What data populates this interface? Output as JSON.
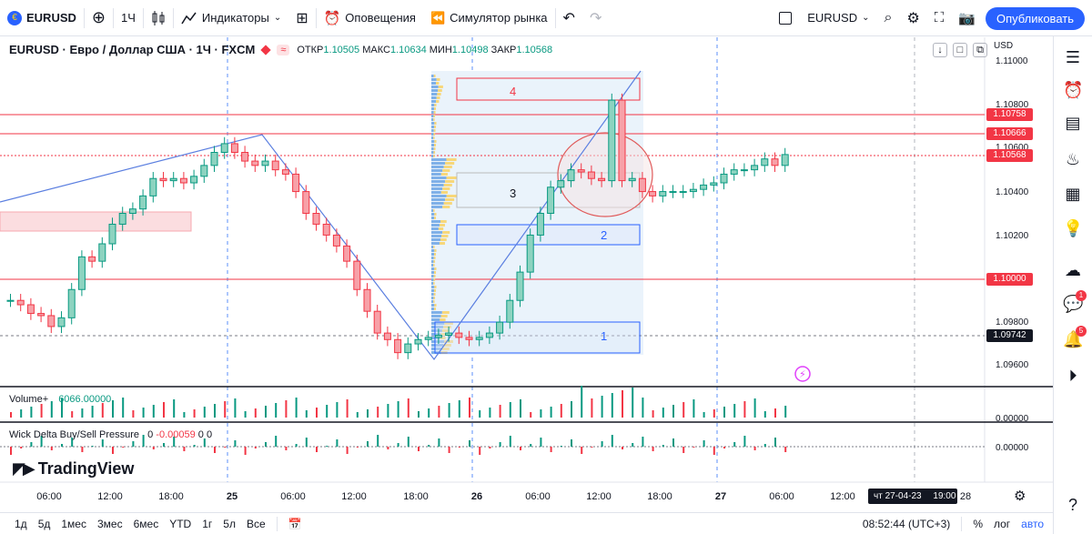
{
  "toolbar": {
    "symbol": "EURUSD",
    "interval": "1Ч",
    "indicators": "Индикаторы",
    "alerts": "Оповещения",
    "replay": "Симулятор рынка",
    "symbol_right": "EURUSD",
    "publish": "Опубликовать"
  },
  "legend": {
    "title": "EURUSD · Евро / Доллар США · 1Ч · FXCM",
    "open_label": "ОТКР",
    "open": "1.10505",
    "high_label": "МАКС",
    "high": "1.10634",
    "low_label": "МИН",
    "low": "1.10498",
    "close_label": "ЗАКР",
    "close": "1.10568"
  },
  "volume": {
    "label": "Volume+",
    "value": "6066.00000"
  },
  "wick_delta": {
    "label": "Wick Delta Buy/Sell Pressure",
    "zero1": "0",
    "value": "-0.00059",
    "zero2": "0",
    "zero3": "0"
  },
  "price_axis": {
    "currency": "USD",
    "ticks": [
      "1.11000",
      "1.10800",
      "1.10600",
      "1.10400",
      "1.10200",
      "1.09800",
      "1.09600"
    ],
    "tags": [
      "1.10758",
      "1.10666",
      "1.10568",
      "1.10000",
      "1.09742"
    ],
    "volume_zero": "0.00000",
    "wd_zero": "0.00000"
  },
  "time_axis": {
    "labels": [
      "06:00",
      "12:00",
      "18:00",
      "25",
      "06:00",
      "12:00",
      "18:00",
      "26",
      "06:00",
      "12:00",
      "18:00",
      "27",
      "06:00",
      "12:00"
    ],
    "cursor": "чт 27-04-23",
    "cursor_time": "19:00",
    "cursor_tail": "28"
  },
  "zones": [
    "4",
    "3",
    "2",
    "1"
  ],
  "brand": "TradingView",
  "bottom": {
    "ranges": [
      "1д",
      "5д",
      "1мес",
      "3мес",
      "6мес",
      "YTD",
      "1г",
      "5л",
      "Все"
    ],
    "clock": "08:52:44 (UTC+3)",
    "pct": "%",
    "log": "лог",
    "auto": "авто"
  },
  "badges": {
    "chat": "1",
    "notif": "5"
  },
  "colors": {
    "up": "#089981",
    "down": "#f23645",
    "accent": "#2962ff"
  }
}
